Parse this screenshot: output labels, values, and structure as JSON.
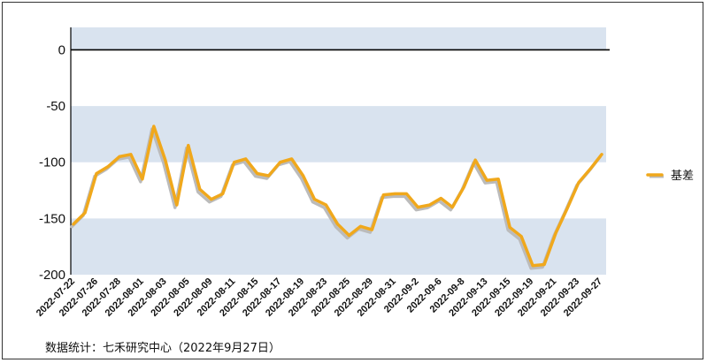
{
  "chart_data": {
    "type": "line",
    "title": "",
    "xlabel": "",
    "ylabel": "",
    "ylim": [
      -200,
      20
    ],
    "yticks": [
      0,
      -50,
      -100,
      -150,
      -200
    ],
    "grid": "alternating horizontal bands",
    "legend_position": "right",
    "x_tick_labels": [
      "2022-07-22",
      "2022-07-26",
      "2022-07-28",
      "2022-08-01",
      "2022-08-03",
      "2022-08-05",
      "2022-08-09",
      "2022-08-11",
      "2022-08-15",
      "2022-08-17",
      "2022-08-19",
      "2022-08-23",
      "2022-08-25",
      "2022-08-29",
      "2022-08-31",
      "2022-09-2",
      "2022-09-6",
      "2022-09-8",
      "2022-09-13",
      "2022-09-15",
      "2022-09-19",
      "2022-09-21",
      "2022-09-23",
      "2022-09-27"
    ],
    "series": [
      {
        "name": "基差",
        "color": "#f0a81c",
        "shadow_color": "#bbbbbb",
        "values": [
          -155,
          -145,
          -110,
          -104,
          -95,
          -93,
          -115,
          -68,
          -98,
          -138,
          -85,
          -124,
          -133,
          -128,
          -100,
          -97,
          -110,
          -112,
          -100,
          -97,
          -112,
          -133,
          -138,
          -155,
          -165,
          -157,
          -160,
          -129,
          -128,
          -128,
          -140,
          -138,
          -132,
          -140,
          -122,
          -98,
          -116,
          -115,
          -158,
          -166,
          -192,
          -191,
          -163,
          -141,
          -118,
          -106,
          -93
        ]
      }
    ],
    "colors": {
      "band": "#d9e3ef",
      "zero_line": "#000000",
      "axis": "#000000"
    }
  },
  "footer": {
    "source": "数据统计：七禾研究中心（2022年9月27日）"
  }
}
